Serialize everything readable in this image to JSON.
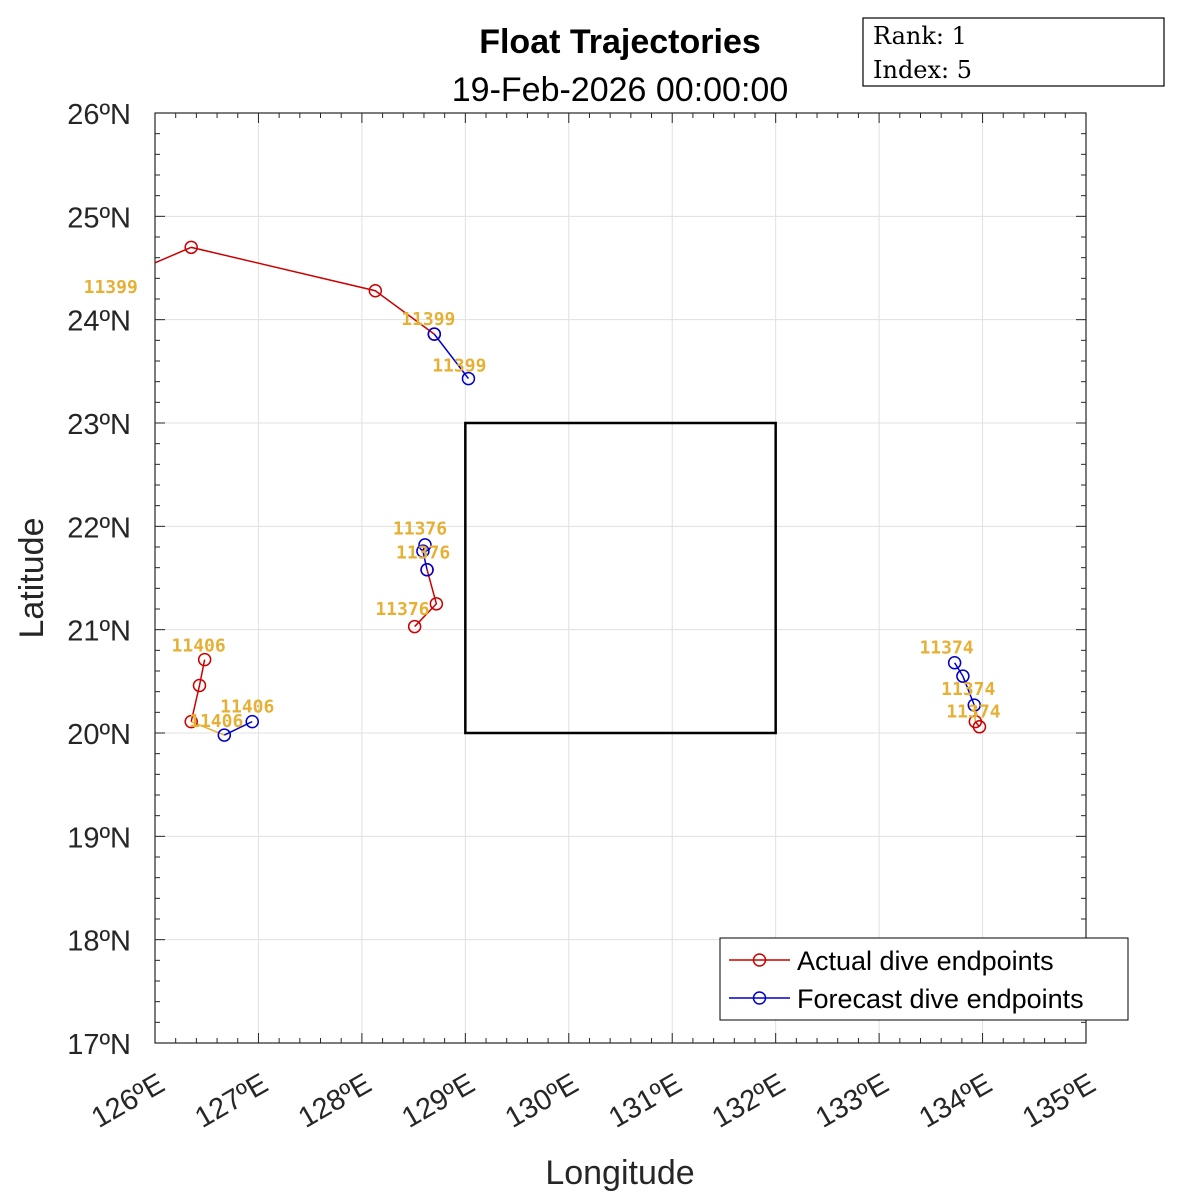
{
  "chart_data": {
    "type": "line",
    "title": "Float Trajectories",
    "subtitle": "19-Feb-2026 00:00:00",
    "xlabel": "Longitude",
    "ylabel": "Latitude",
    "xlim": [
      126,
      135
    ],
    "ylim": [
      17,
      26
    ],
    "xticks": [
      {
        "v": 126,
        "label": "126ºE"
      },
      {
        "v": 127,
        "label": "127ºE"
      },
      {
        "v": 128,
        "label": "128ºE"
      },
      {
        "v": 129,
        "label": "129ºE"
      },
      {
        "v": 130,
        "label": "130ºE"
      },
      {
        "v": 131,
        "label": "131ºE"
      },
      {
        "v": 132,
        "label": "132ºE"
      },
      {
        "v": 133,
        "label": "133ºE"
      },
      {
        "v": 134,
        "label": "134ºE"
      },
      {
        "v": 135,
        "label": "135ºE"
      }
    ],
    "yticks": [
      {
        "v": 17,
        "label": "17ºN"
      },
      {
        "v": 18,
        "label": "18ºN"
      },
      {
        "v": 19,
        "label": "19ºN"
      },
      {
        "v": 20,
        "label": "20ºN"
      },
      {
        "v": 21,
        "label": "21ºN"
      },
      {
        "v": 22,
        "label": "22ºN"
      },
      {
        "v": 23,
        "label": "23ºN"
      },
      {
        "v": 24,
        "label": "24ºN"
      },
      {
        "v": 25,
        "label": "25ºN"
      },
      {
        "v": 26,
        "label": "26ºN"
      }
    ],
    "grid": true,
    "legend_position": "bottom-right",
    "colors": {
      "actual": "#cc0000",
      "forecast": "#0000cc",
      "labels": "#e6b035",
      "connector": "#e6b035"
    },
    "info_box": [
      "Rank: 1",
      "Index: 5"
    ],
    "region_box": {
      "lon": [
        129,
        132
      ],
      "lat": [
        20,
        23
      ]
    },
    "series": [
      {
        "name": "Actual dive endpoints",
        "color": "#cc0000",
        "float": "11399",
        "line_start": [
          126.0,
          24.55
        ],
        "points": [
          [
            126.35,
            24.7
          ],
          [
            128.13,
            24.28
          ],
          [
            128.7,
            23.86
          ]
        ]
      },
      {
        "name": "Forecast dive endpoints",
        "color": "#0000cc",
        "float": "11399",
        "points": [
          [
            128.7,
            23.86
          ],
          [
            129.03,
            23.43
          ]
        ]
      },
      {
        "name": "Actual dive endpoints",
        "color": "#cc0000",
        "float": "11376",
        "points": [
          [
            128.51,
            21.03
          ],
          [
            128.72,
            21.25
          ],
          [
            128.63,
            21.58
          ]
        ]
      },
      {
        "name": "Forecast dive endpoints",
        "color": "#0000cc",
        "float": "11376",
        "points": [
          [
            128.63,
            21.58
          ],
          [
            128.59,
            21.76
          ],
          [
            128.61,
            21.82
          ]
        ]
      },
      {
        "name": "Actual dive endpoints",
        "color": "#cc0000",
        "float": "11406",
        "points": [
          [
            126.48,
            20.71
          ],
          [
            126.43,
            20.46
          ],
          [
            126.35,
            20.11
          ]
        ]
      },
      {
        "name": "Forecast dive endpoints",
        "color": "#0000cc",
        "float": "11406",
        "points": [
          [
            126.67,
            19.98
          ],
          [
            126.94,
            20.11
          ]
        ]
      },
      {
        "name": "Actual dive endpoints",
        "color": "#cc0000",
        "float": "11374",
        "points": [
          [
            133.97,
            20.06
          ],
          [
            133.93,
            20.11
          ]
        ]
      },
      {
        "name": "Forecast dive endpoints",
        "color": "#0000cc",
        "float": "11374",
        "points": [
          [
            133.92,
            20.27
          ],
          [
            133.81,
            20.55
          ],
          [
            133.73,
            20.68
          ]
        ]
      }
    ],
    "connectors": [
      {
        "float": "11406",
        "points": [
          [
            126.35,
            20.11
          ],
          [
            126.67,
            19.98
          ]
        ]
      },
      {
        "float": "11374",
        "points": [
          [
            133.93,
            20.11
          ],
          [
            133.92,
            20.27
          ]
        ]
      }
    ],
    "annotations": [
      {
        "text": "11399",
        "lon": 125.31,
        "lat": 24.26
      },
      {
        "text": "11399",
        "lon": 128.38,
        "lat": 23.95
      },
      {
        "text": "11399",
        "lon": 128.68,
        "lat": 23.5
      },
      {
        "text": "11376",
        "lon": 128.3,
        "lat": 21.92
      },
      {
        "text": "11376",
        "lon": 128.33,
        "lat": 21.69
      },
      {
        "text": "11376",
        "lon": 128.13,
        "lat": 21.14
      },
      {
        "text": "11406",
        "lon": 126.16,
        "lat": 20.79
      },
      {
        "text": "11406",
        "lon": 126.63,
        "lat": 20.2
      },
      {
        "text": "11406",
        "lon": 126.33,
        "lat": 20.06
      },
      {
        "text": "11374",
        "lon": 133.39,
        "lat": 20.77
      },
      {
        "text": "11374",
        "lon": 133.6,
        "lat": 20.37
      },
      {
        "text": "11374",
        "lon": 133.65,
        "lat": 20.15
      }
    ],
    "legend": [
      {
        "name": "Actual dive endpoints",
        "color": "#cc0000"
      },
      {
        "name": "Forecast dive endpoints",
        "color": "#0000cc"
      }
    ]
  }
}
